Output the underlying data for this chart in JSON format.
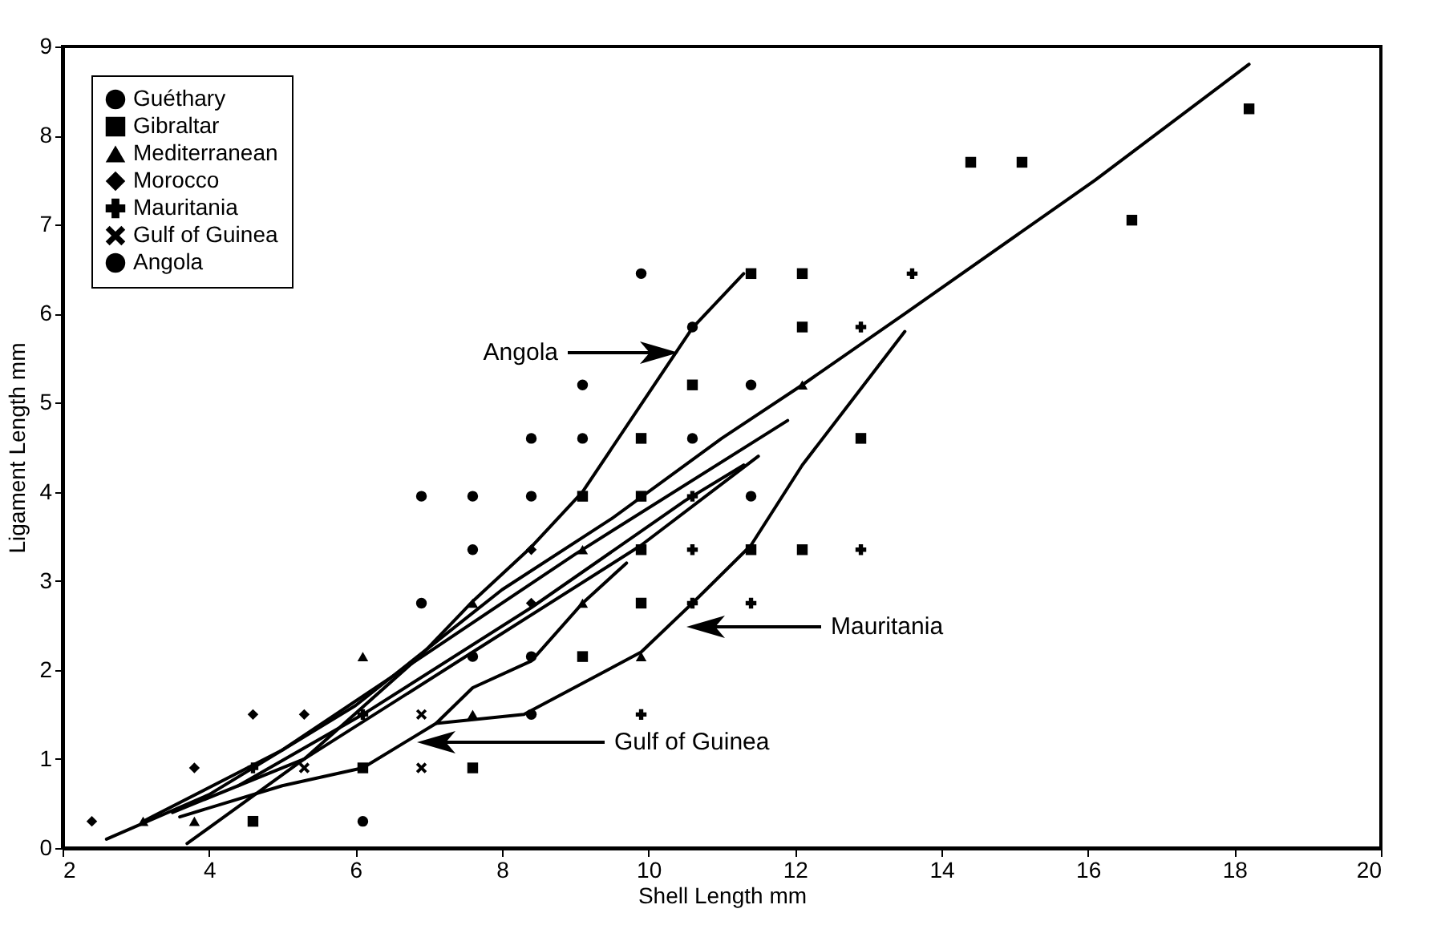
{
  "chart_data": {
    "type": "scatter",
    "xlabel": "Shell Length mm",
    "ylabel": "Ligament Length mm",
    "xlim": [
      2,
      20
    ],
    "xticks": [
      2,
      4,
      6,
      8,
      10,
      12,
      14,
      16,
      18,
      20
    ],
    "ylim": [
      0,
      9
    ],
    "yticks": [
      0,
      1,
      2,
      3,
      4,
      5,
      6,
      7,
      8,
      9
    ],
    "legend": "top left",
    "annotations": [
      "Angola",
      "Mauritania",
      "Gulf of Guinea"
    ],
    "series": [
      {
        "name": "Guéthary",
        "color": "#000000",
        "marker": "circle",
        "x": [
          11.4,
          7.6,
          8.4
        ],
        "values": [
          3.95,
          2.15,
          2.15
        ]
      },
      {
        "name": "Gibraltar",
        "color": "#000000",
        "marker": "square",
        "x": [
          11.4,
          12.1,
          12.1,
          10.6,
          9.9,
          12.9,
          9.1,
          9.9,
          9.9,
          11.4,
          12.1,
          9.9,
          9.1,
          6.1,
          7.6,
          4.6,
          14.4,
          15.1,
          16.6,
          18.2
        ],
        "values": [
          6.45,
          6.45,
          5.85,
          5.2,
          4.6,
          4.6,
          3.95,
          3.95,
          3.35,
          3.35,
          3.35,
          2.75,
          2.15,
          0.9,
          0.9,
          0.3,
          7.7,
          7.7,
          7.05,
          8.3
        ]
      },
      {
        "name": "Mediterranean",
        "color": "#000000",
        "marker": "triangle",
        "x": [
          12.1,
          9.1,
          7.6,
          9.1,
          6.1,
          9.9,
          7.6,
          3.1,
          3.8
        ],
        "values": [
          5.2,
          3.35,
          2.75,
          2.75,
          2.15,
          2.15,
          1.5,
          0.3,
          0.3
        ]
      },
      {
        "name": "Morocco",
        "color": "#000000",
        "marker": "diamond",
        "x": [
          8.4,
          8.4,
          4.6,
          5.3,
          3.8,
          2.4
        ],
        "values": [
          3.35,
          2.75,
          1.5,
          1.5,
          0.9,
          0.3
        ]
      },
      {
        "name": "Mauritania",
        "color": "#000000",
        "marker": "cross",
        "x": [
          13.6,
          12.9,
          10.6,
          10.6,
          12.9,
          10.6,
          11.4,
          9.9,
          4.6,
          6.1
        ],
        "values": [
          6.45,
          5.85,
          3.95,
          3.35,
          3.35,
          2.75,
          2.75,
          1.5,
          0.9,
          1.5
        ]
      },
      {
        "name": "Gulf of Guinea",
        "color": "#000000",
        "marker": "x",
        "x": [
          6.9,
          5.3,
          6.9
        ],
        "values": [
          1.5,
          0.9,
          0.9
        ]
      },
      {
        "name": "Angola",
        "color": "#000000",
        "marker": "circle",
        "x": [
          9.9,
          10.6,
          9.1,
          11.4,
          8.4,
          9.1,
          10.6,
          6.9,
          7.6,
          8.4,
          7.6,
          6.9,
          8.4,
          6.1
        ],
        "values": [
          6.45,
          5.85,
          5.2,
          5.2,
          4.6,
          4.6,
          4.6,
          3.95,
          3.95,
          3.95,
          3.35,
          2.75,
          1.5,
          0.3
        ]
      },
      {
        "type": "line",
        "color": "#000000",
        "x": [
          3.7,
          5.3,
          6.9,
          7.6,
          8.4,
          9.1,
          10.6,
          11.3
        ],
        "values": [
          0.05,
          1.0,
          2.17,
          2.77,
          3.38,
          4.0,
          5.84,
          6.45
        ]
      },
      {
        "type": "line",
        "color": "#000000",
        "x": [
          2.6,
          4.0,
          6.0,
          8.0,
          9.5,
          11.0,
          12.1,
          13.5,
          16.1,
          18.2
        ],
        "values": [
          0.1,
          0.6,
          1.6,
          2.9,
          3.7,
          4.6,
          5.2,
          6.0,
          7.5,
          8.8
        ]
      },
      {
        "type": "line",
        "color": "#000000",
        "x": [
          7.1,
          8.3,
          9.9,
          10.6,
          11.4,
          12.1,
          13.5
        ],
        "values": [
          1.4,
          1.5,
          2.2,
          2.75,
          3.4,
          4.3,
          5.8
        ]
      },
      {
        "type": "line",
        "color": "#000000",
        "x": [
          3.6,
          5.0,
          6.1,
          7.1,
          7.6,
          8.4,
          9.1,
          9.7
        ],
        "values": [
          0.35,
          0.7,
          0.9,
          1.4,
          1.8,
          2.1,
          2.75,
          3.2
        ]
      },
      {
        "type": "line",
        "color": "#000000",
        "x": [
          3.1,
          5.0,
          7.0,
          9.0,
          11.9
        ],
        "values": [
          0.3,
          1.1,
          2.2,
          3.3,
          4.8
        ]
      },
      {
        "type": "line",
        "color": "#000000",
        "x": [
          3.5,
          5.3,
          7.6,
          9.9,
          11.5
        ],
        "values": [
          0.4,
          1.0,
          2.2,
          3.4,
          4.4
        ]
      },
      {
        "type": "line",
        "color": "#000000",
        "x": [
          4.4,
          6.1,
          8.4,
          10.5,
          11.3
        ],
        "values": [
          0.7,
          1.5,
          2.7,
          3.9,
          4.3
        ]
      }
    ]
  }
}
